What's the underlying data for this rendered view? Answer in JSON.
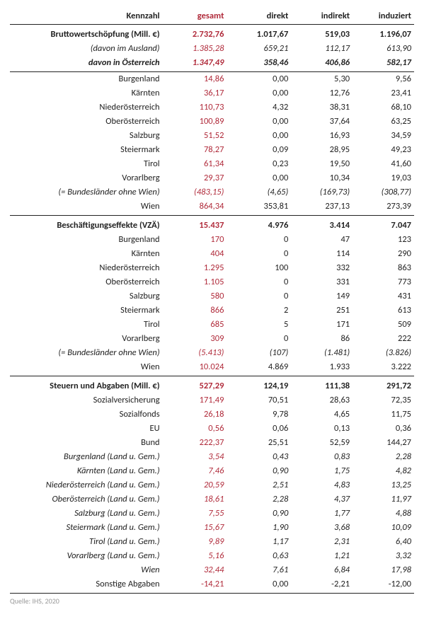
{
  "columns": {
    "label": "Kennzahl",
    "gesamt": "gesamt",
    "direkt": "direkt",
    "indirekt": "indirekt",
    "induziert": "induziert"
  },
  "block1": {
    "head": {
      "label": "Bruttowertschöpfung (Mill. €)",
      "g": "2.732,76",
      "d": "1.017,67",
      "i": "519,03",
      "z": "1.196,07"
    },
    "sub1": {
      "label": "(davon im Ausland)",
      "g": "1.385,28",
      "d": "659,21",
      "i": "112,17",
      "z": "613,90"
    },
    "sub2": {
      "label": "davon in Österreich",
      "g": "1.347,49",
      "d": "358,46",
      "i": "406,86",
      "z": "582,17"
    },
    "rows": [
      {
        "label": "Burgenland",
        "g": "14,86",
        "d": "0,00",
        "i": "5,30",
        "z": "9,56"
      },
      {
        "label": "Kärnten",
        "g": "36,17",
        "d": "0,00",
        "i": "12,76",
        "z": "23,41"
      },
      {
        "label": "Niederösterreich",
        "g": "110,73",
        "d": "4,32",
        "i": "38,31",
        "z": "68,10"
      },
      {
        "label": "Oberösterreich",
        "g": "100,89",
        "d": "0,00",
        "i": "37,64",
        "z": "63,25"
      },
      {
        "label": "Salzburg",
        "g": "51,52",
        "d": "0,00",
        "i": "16,93",
        "z": "34,59"
      },
      {
        "label": "Steiermark",
        "g": "78,27",
        "d": "0,09",
        "i": "28,95",
        "z": "49,23"
      },
      {
        "label": "Tirol",
        "g": "61,34",
        "d": "0,23",
        "i": "19,50",
        "z": "41,60"
      },
      {
        "label": "Vorarlberg",
        "g": "29,37",
        "d": "0,00",
        "i": "10,34",
        "z": "19,03"
      },
      {
        "label": "(= Bundesländer ohne Wien)",
        "g": "(483,15)",
        "d": "(4,65)",
        "i": "(169,73)",
        "z": "(308,77)",
        "italic": true
      },
      {
        "label": "Wien",
        "g": "864,34",
        "d": "353,81",
        "i": "237,13",
        "z": "273,39"
      }
    ]
  },
  "block2": {
    "head": {
      "label": "Beschäftigungseffekte (VZÄ)",
      "g": "15.437",
      "d": "4.976",
      "i": "3.414",
      "z": "7.047"
    },
    "rows": [
      {
        "label": "Burgenland",
        "g": "170",
        "d": "0",
        "i": "47",
        "z": "123"
      },
      {
        "label": "Kärnten",
        "g": "404",
        "d": "0",
        "i": "114",
        "z": "290"
      },
      {
        "label": "Niederösterreich",
        "g": "1.295",
        "d": "100",
        "i": "332",
        "z": "863"
      },
      {
        "label": "Oberösterreich",
        "g": "1.105",
        "d": "0",
        "i": "331",
        "z": "773"
      },
      {
        "label": "Salzburg",
        "g": "580",
        "d": "0",
        "i": "149",
        "z": "431"
      },
      {
        "label": "Steiermark",
        "g": "866",
        "d": "2",
        "i": "251",
        "z": "613"
      },
      {
        "label": "Tirol",
        "g": "685",
        "d": "5",
        "i": "171",
        "z": "509"
      },
      {
        "label": "Vorarlberg",
        "g": "309",
        "d": "0",
        "i": "86",
        "z": "222"
      },
      {
        "label": "(= Bundesländer ohne Wien)",
        "g": "(5.413)",
        "d": "(107)",
        "i": "(1.481)",
        "z": "(3.826)",
        "italic": true
      },
      {
        "label": "Wien",
        "g": "10.024",
        "d": "4.869",
        "i": "1.933",
        "z": "3.222"
      }
    ]
  },
  "block3": {
    "head": {
      "label": "Steuern und Abgaben (Mill. €)",
      "g": "527,29",
      "d": "124,19",
      "i": "111,38",
      "z": "291,72"
    },
    "rows": [
      {
        "label": "Sozialversicherung",
        "g": "171,49",
        "d": "70,51",
        "i": "28,63",
        "z": "72,35"
      },
      {
        "label": "Sozialfonds",
        "g": "26,18",
        "d": "9,78",
        "i": "4,65",
        "z": "11,75"
      },
      {
        "label": "EU",
        "g": "0,56",
        "d": "0,06",
        "i": "0,13",
        "z": "0,36"
      },
      {
        "label": "Bund",
        "g": "222,37",
        "d": "25,51",
        "i": "52,59",
        "z": "144,27"
      },
      {
        "label": "Burgenland (Land u. Gem.)",
        "g": "3,54",
        "d": "0,43",
        "i": "0,83",
        "z": "2,28",
        "italic": true
      },
      {
        "label": "Kärnten (Land u. Gem.)",
        "g": "7,46",
        "d": "0,90",
        "i": "1,75",
        "z": "4,82",
        "italic": true
      },
      {
        "label": "Niederösterreich (Land u. Gem.)",
        "g": "20,59",
        "d": "2,51",
        "i": "4,83",
        "z": "13,25",
        "italic": true
      },
      {
        "label": "Oberösterreich (Land u. Gem.)",
        "g": "18,61",
        "d": "2,28",
        "i": "4,37",
        "z": "11,97",
        "italic": true
      },
      {
        "label": "Salzburg (Land u. Gem.)",
        "g": "7,55",
        "d": "0,90",
        "i": "1,77",
        "z": "4,88",
        "italic": true
      },
      {
        "label": "Steiermark (Land u. Gem.)",
        "g": "15,67",
        "d": "1,90",
        "i": "3,68",
        "z": "10,09",
        "italic": true
      },
      {
        "label": "Tirol (Land u. Gem.)",
        "g": "9,89",
        "d": "1,17",
        "i": "2,31",
        "z": "6,40",
        "italic": true
      },
      {
        "label": "Vorarlberg (Land u. Gem.)",
        "g": "5,16",
        "d": "0,63",
        "i": "1,21",
        "z": "3,32",
        "italic": true
      },
      {
        "label": "Wien",
        "g": "32,44",
        "d": "7,61",
        "i": "6,84",
        "z": "17,98",
        "italic": true
      },
      {
        "label": "Sonstige Abgaben",
        "g": "-14,21",
        "d": "0,00",
        "i": "-2,21",
        "z": "-12,00"
      }
    ]
  },
  "source": "Quelle: IHS, 2020"
}
